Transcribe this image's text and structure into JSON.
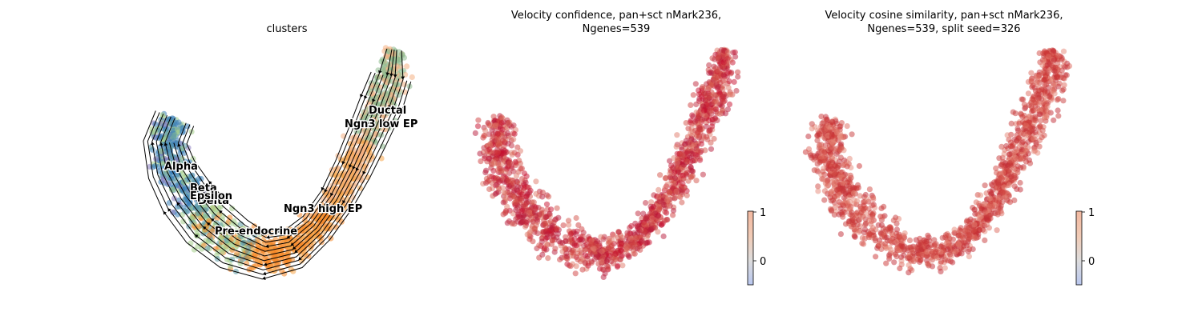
{
  "chart_data": [
    {
      "type": "scatter",
      "title": "clusters",
      "legend": "on data",
      "stream_arrows": true,
      "clusters": [
        {
          "name": "Ductal",
          "color": "#8fbc8f"
        },
        {
          "name": "Ngn3 low EP",
          "color": "#f4b183"
        },
        {
          "name": "Ngn3 high EP",
          "color": "#f7a64a"
        },
        {
          "name": "Pre-endocrine",
          "color": "#f5892a"
        },
        {
          "name": "Beta",
          "color": "#a6cf8c"
        },
        {
          "name": "Alpha",
          "color": "#3a80b8"
        },
        {
          "name": "Delta",
          "color": "#5d9aa5"
        },
        {
          "name": "Epsilon",
          "color": "#8a7bc0"
        }
      ]
    },
    {
      "type": "scatter",
      "title_lines": [
        "Velocity confidence, pan+sct nMark236,",
        "Ngenes=539"
      ],
      "colorbar": {
        "ticks": [
          "1",
          "0"
        ],
        "range": [
          -0.5,
          1
        ],
        "cmap": "coolwarm"
      },
      "value_range": [
        0.7,
        1.0
      ]
    },
    {
      "type": "scatter",
      "title_lines": [
        "Velocity cosine similarity, pan+sct nMark236,",
        "Ngenes=539, split seed=326"
      ],
      "colorbar": {
        "ticks": [
          "1",
          "0"
        ],
        "range": [
          -0.5,
          1
        ],
        "cmap": "coolwarm"
      },
      "value_range": [
        0.8,
        1.0
      ]
    }
  ]
}
